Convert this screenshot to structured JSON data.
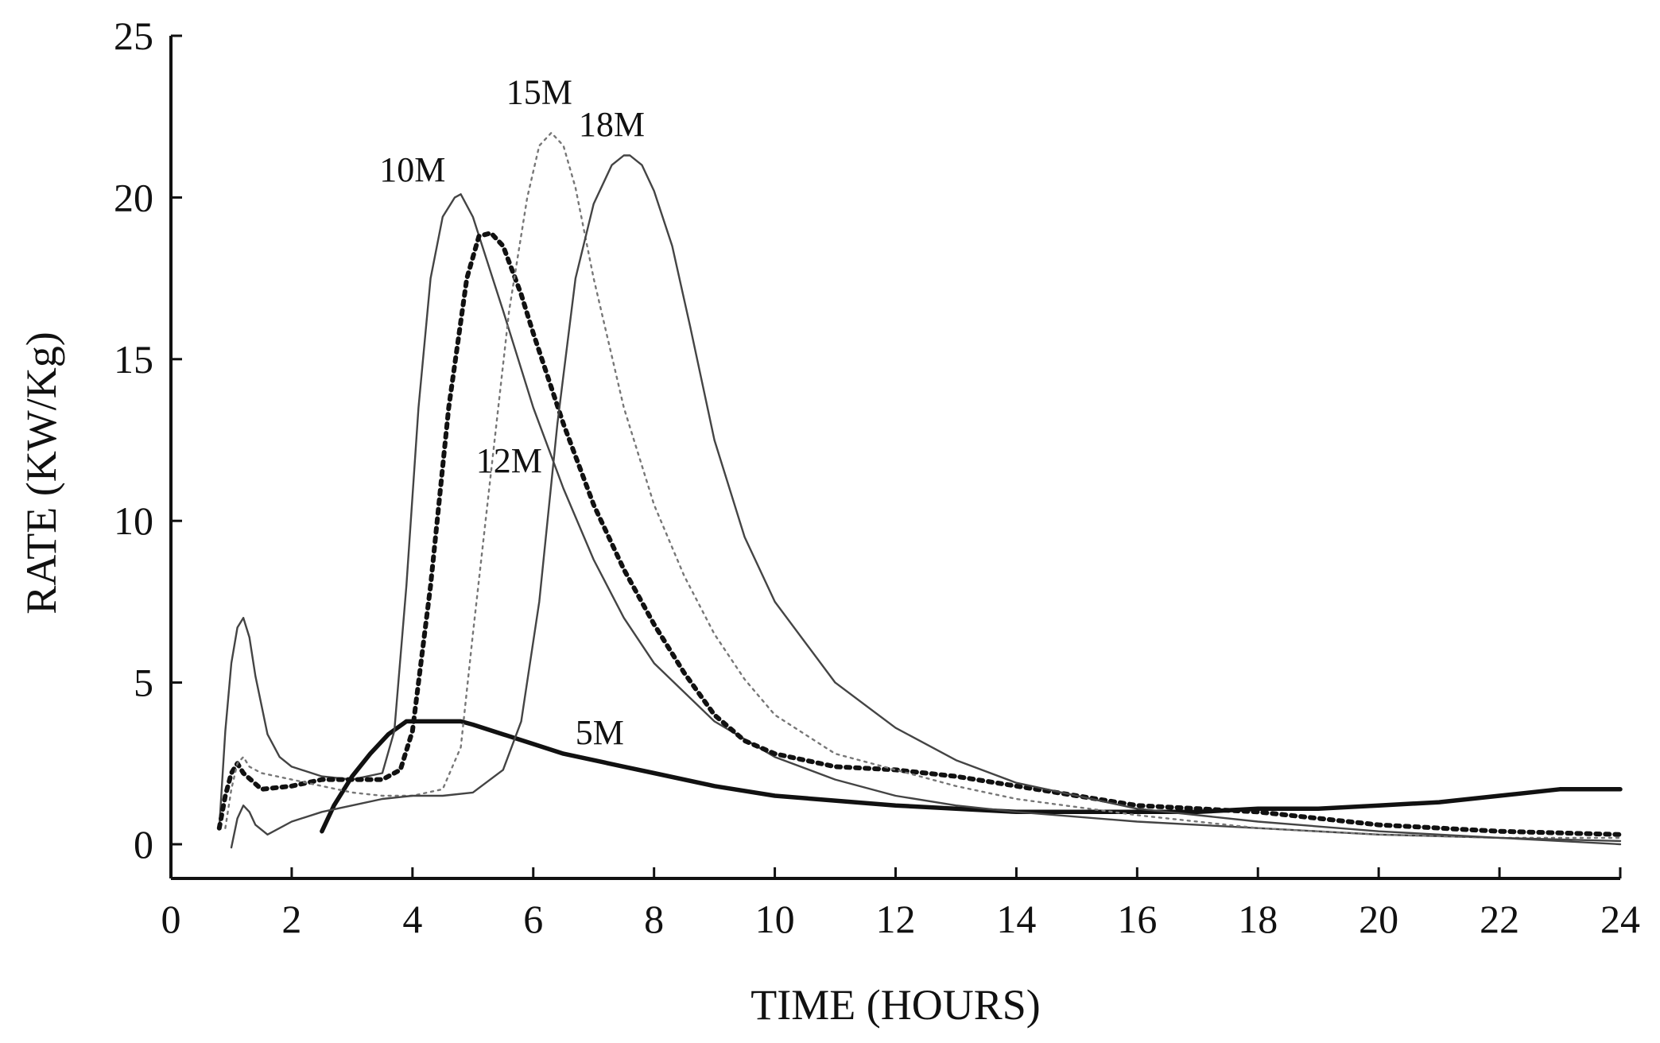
{
  "chart_data": {
    "type": "line",
    "title": "",
    "xlabel": "TIME (HOURS)",
    "ylabel": "RATE (KW/Kg)",
    "xlim": [
      0,
      24
    ],
    "ylim": [
      -1,
      25
    ],
    "xticks": [
      0,
      2,
      4,
      6,
      8,
      10,
      12,
      14,
      16,
      18,
      20,
      22,
      24
    ],
    "yticks": [
      0,
      5,
      10,
      15,
      20,
      25
    ],
    "grid": false,
    "legend": "none (labels placed next to curves)",
    "series": [
      {
        "name": "5M",
        "style": "thick-solid",
        "x": [
          2.5,
          2.7,
          3.0,
          3.3,
          3.6,
          3.9,
          4.2,
          4.5,
          4.8,
          5.0,
          5.5,
          6.0,
          6.5,
          7.0,
          7.5,
          8.0,
          9.0,
          10.0,
          12.0,
          14.0,
          16.0,
          17.0,
          18.0,
          19.0,
          20.0,
          21.0,
          22.0,
          23.0,
          24.0
        ],
        "y": [
          0.4,
          1.2,
          2.1,
          2.8,
          3.4,
          3.8,
          3.8,
          3.8,
          3.8,
          3.7,
          3.4,
          3.1,
          2.8,
          2.6,
          2.4,
          2.2,
          1.8,
          1.5,
          1.2,
          1.0,
          1.0,
          1.0,
          1.1,
          1.1,
          1.2,
          1.3,
          1.5,
          1.7,
          1.7
        ]
      },
      {
        "name": "10M",
        "style": "thin-solid",
        "x": [
          0.8,
          0.9,
          1.0,
          1.1,
          1.2,
          1.3,
          1.4,
          1.6,
          1.8,
          2.0,
          2.5,
          3.0,
          3.5,
          3.7,
          3.9,
          4.1,
          4.3,
          4.5,
          4.7,
          4.8,
          5.0,
          5.5,
          6.0,
          6.5,
          7.0,
          7.5,
          8.0,
          9.0,
          10.0,
          11.0,
          12.0,
          13.0,
          14.0,
          16.0,
          18.0,
          20.0,
          22.0,
          24.0
        ],
        "y": [
          0.5,
          3.5,
          5.6,
          6.7,
          7.0,
          6.4,
          5.2,
          3.4,
          2.7,
          2.4,
          2.1,
          2.0,
          2.2,
          3.5,
          8.0,
          13.5,
          17.5,
          19.4,
          20.0,
          20.1,
          19.4,
          16.5,
          13.5,
          11.0,
          8.8,
          7.0,
          5.6,
          3.8,
          2.7,
          2.0,
          1.5,
          1.2,
          1.0,
          0.7,
          0.5,
          0.3,
          0.2,
          0.0
        ]
      },
      {
        "name": "12M",
        "style": "thick-dotted",
        "x": [
          0.8,
          0.9,
          1.0,
          1.1,
          1.2,
          1.5,
          2.0,
          2.5,
          3.0,
          3.5,
          3.8,
          4.0,
          4.3,
          4.6,
          4.9,
          5.1,
          5.3,
          5.5,
          5.8,
          6.0,
          6.5,
          7.0,
          7.5,
          8.0,
          8.5,
          9.0,
          9.5,
          10.0,
          11.0,
          12.0,
          13.0,
          14.0,
          15.0,
          16.0,
          18.0,
          20.0,
          22.0,
          24.0
        ],
        "y": [
          0.5,
          1.5,
          2.2,
          2.5,
          2.2,
          1.7,
          1.8,
          2.0,
          2.0,
          2.0,
          2.3,
          3.5,
          8.0,
          13.5,
          17.5,
          18.8,
          18.9,
          18.5,
          17.0,
          15.8,
          13.0,
          10.5,
          8.5,
          6.8,
          5.3,
          4.0,
          3.2,
          2.8,
          2.4,
          2.3,
          2.1,
          1.8,
          1.5,
          1.2,
          1.0,
          0.6,
          0.4,
          0.3
        ]
      },
      {
        "name": "15M",
        "style": "thin-dotted",
        "x": [
          0.9,
          1.0,
          1.1,
          1.2,
          1.3,
          1.5,
          2.0,
          2.5,
          3.0,
          3.5,
          4.0,
          4.5,
          4.8,
          5.0,
          5.3,
          5.6,
          5.9,
          6.1,
          6.3,
          6.5,
          6.7,
          7.0,
          7.5,
          8.0,
          8.5,
          9.0,
          9.5,
          10.0,
          11.0,
          12.0,
          13.0,
          14.0,
          16.0,
          18.0,
          20.0,
          22.0,
          24.0
        ],
        "y": [
          0.5,
          1.7,
          2.5,
          2.7,
          2.4,
          2.2,
          2.0,
          1.8,
          1.6,
          1.5,
          1.5,
          1.7,
          3.0,
          6.5,
          11.5,
          16.5,
          20.0,
          21.6,
          22.0,
          21.6,
          20.3,
          17.5,
          13.5,
          10.5,
          8.3,
          6.5,
          5.1,
          4.0,
          2.8,
          2.3,
          1.8,
          1.4,
          0.9,
          0.5,
          0.3,
          0.2,
          0.2
        ]
      },
      {
        "name": "18M",
        "style": "thin-solid",
        "x": [
          1.0,
          1.1,
          1.2,
          1.3,
          1.4,
          1.6,
          2.0,
          2.5,
          3.0,
          3.5,
          4.0,
          4.5,
          5.0,
          5.5,
          5.8,
          6.1,
          6.4,
          6.7,
          7.0,
          7.3,
          7.5,
          7.6,
          7.8,
          8.0,
          8.3,
          8.6,
          9.0,
          9.5,
          10.0,
          11.0,
          12.0,
          13.0,
          14.0,
          16.0,
          18.0,
          20.0,
          22.0,
          24.0
        ],
        "y": [
          -0.1,
          0.8,
          1.2,
          1.0,
          0.6,
          0.3,
          0.7,
          1.0,
          1.2,
          1.4,
          1.5,
          1.5,
          1.6,
          2.3,
          3.8,
          7.5,
          13.0,
          17.5,
          19.8,
          21.0,
          21.3,
          21.3,
          21.0,
          20.2,
          18.5,
          16.0,
          12.5,
          9.5,
          7.5,
          5.0,
          3.6,
          2.6,
          1.9,
          1.1,
          0.7,
          0.4,
          0.2,
          0.1
        ]
      }
    ],
    "annotations": [
      {
        "text": "5M",
        "x": 7.1,
        "y": 3.1
      },
      {
        "text": "10M",
        "x": 4.0,
        "y": 20.5
      },
      {
        "text": "12M",
        "x": 5.6,
        "y": 11.5
      },
      {
        "text": "15M",
        "x": 6.1,
        "y": 22.9
      },
      {
        "text": "18M",
        "x": 7.3,
        "y": 21.9
      }
    ]
  }
}
